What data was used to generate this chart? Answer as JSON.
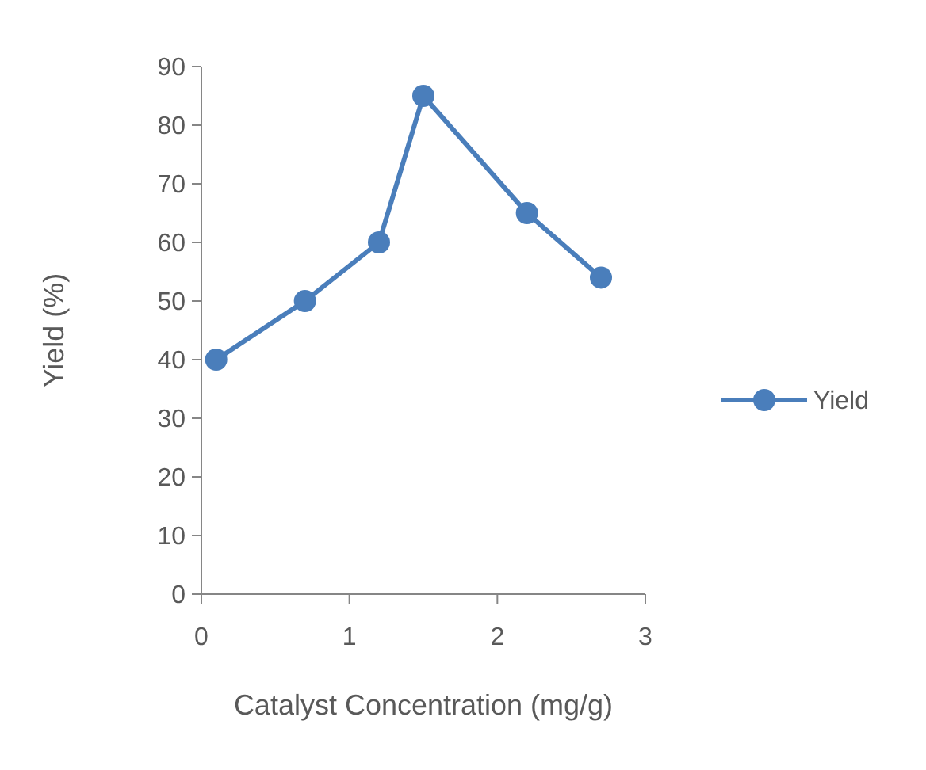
{
  "chart_data": {
    "type": "line",
    "xlabel": "Catalyst Concentration (mg/g)",
    "ylabel": "Yield (%)",
    "x": [
      0.1,
      0.7,
      1.2,
      1.5,
      2.2,
      2.7
    ],
    "series": [
      {
        "name": "Yield",
        "color": "#4a7ebb",
        "values": [
          40,
          50,
          60,
          85,
          65,
          54
        ]
      }
    ],
    "xlim": [
      0,
      3
    ],
    "xticks": [
      0,
      1,
      2,
      3
    ],
    "ylim": [
      0,
      90
    ],
    "yticks": [
      0,
      10,
      20,
      30,
      40,
      50,
      60,
      70,
      80,
      90
    ],
    "grid": false,
    "legend": "right",
    "marker": "circle",
    "line_style": "solid"
  }
}
